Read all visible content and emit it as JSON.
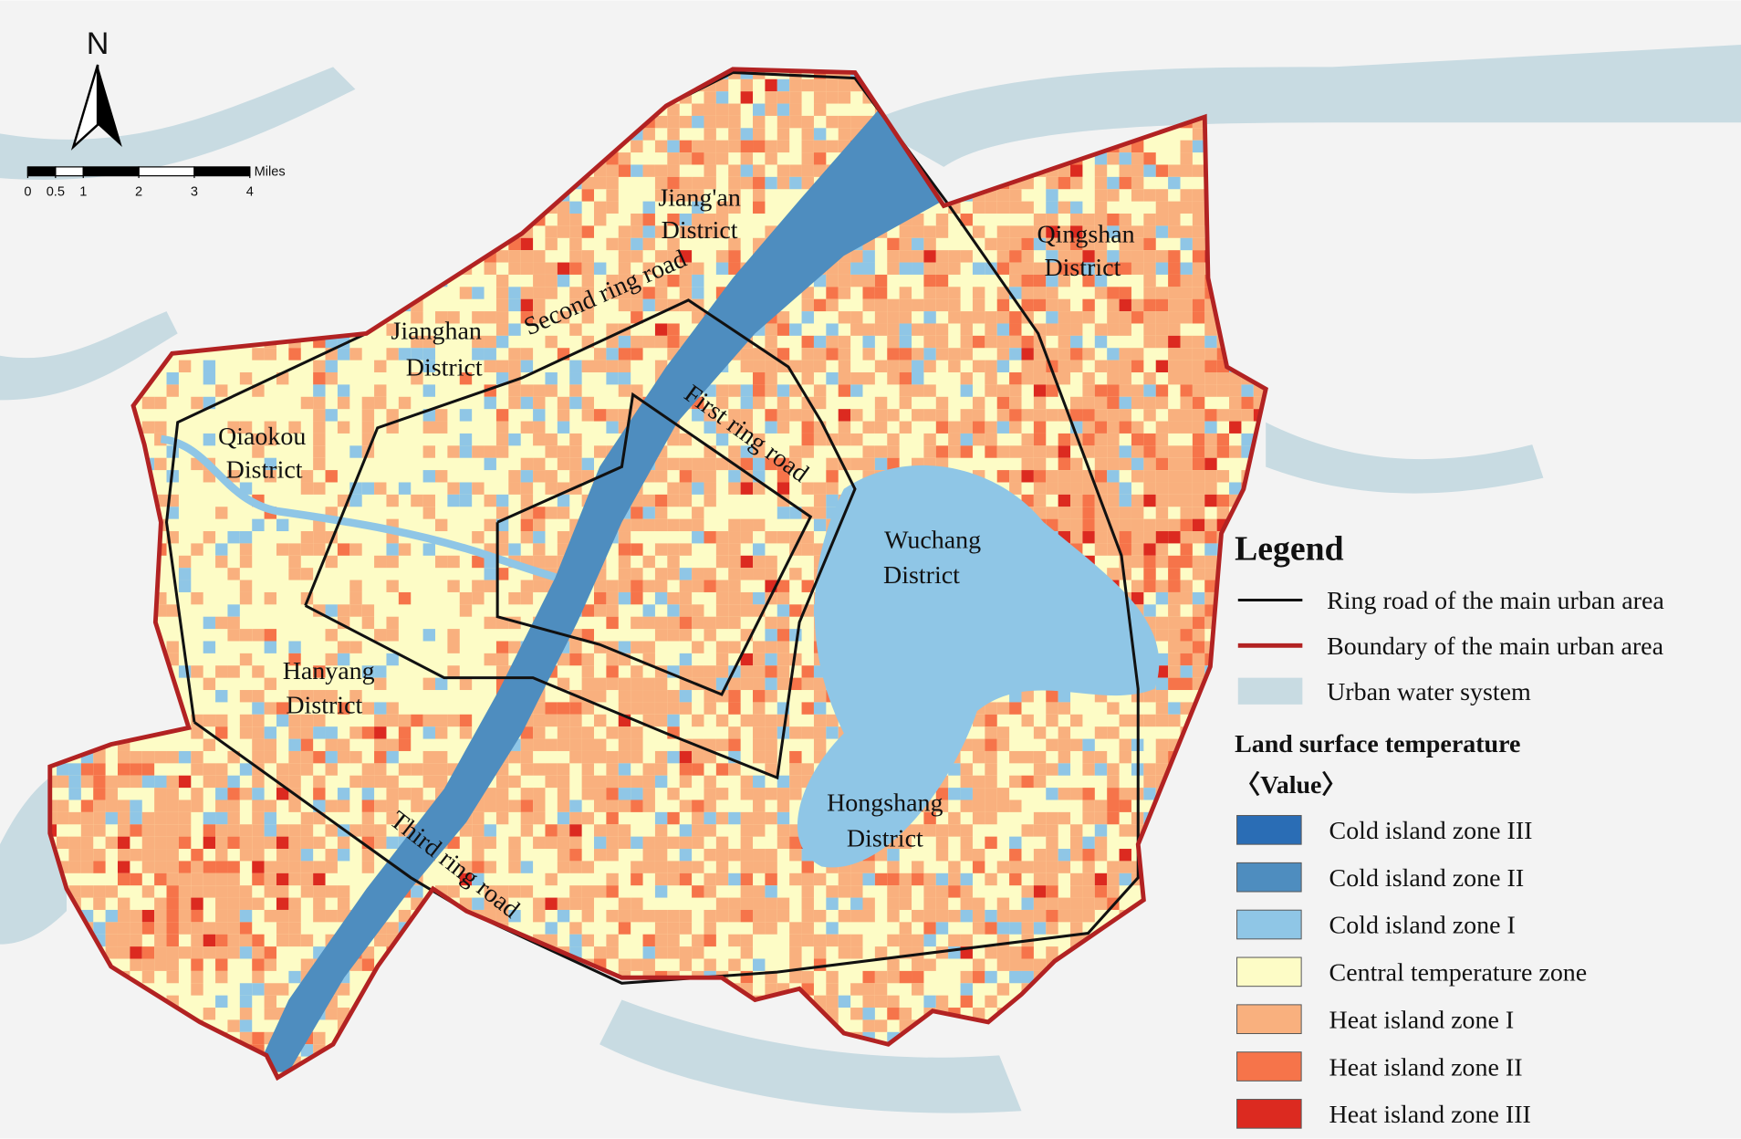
{
  "north": "N",
  "scale": {
    "ticks": [
      0,
      0.5,
      1,
      2,
      3,
      4
    ],
    "unit": "Miles"
  },
  "districts": [
    {
      "lines": [
        "Jiang'an",
        "District"
      ]
    },
    {
      "lines": [
        "Qingshan",
        "District"
      ]
    },
    {
      "lines": [
        "Jianghan",
        "District"
      ]
    },
    {
      "lines": [
        "Qiaokou",
        "District"
      ]
    },
    {
      "lines": [
        "Wuchang",
        "District"
      ]
    },
    {
      "lines": [
        "Hanyang",
        "District"
      ]
    },
    {
      "lines": [
        "Hongshang",
        "District"
      ]
    }
  ],
  "roads": [
    "Second ring road",
    "First ring road",
    "Third ring road"
  ],
  "legend": {
    "title": "Legend",
    "items": [
      {
        "label": "Ring road of the main urban area",
        "color": "#111111"
      },
      {
        "label": "Boundary of the main urban area",
        "color": "#b22222"
      },
      {
        "label": "Urban water system",
        "color": "#c8dbe2"
      }
    ],
    "lst_title": "Land surface temperature",
    "lst_subtitle": "〈Value〉",
    "zones": [
      {
        "label": "Cold island zone III",
        "color": "#2a6db5"
      },
      {
        "label": "Cold island zone II",
        "color": "#4e8dbf"
      },
      {
        "label": "Cold island zone I",
        "color": "#8fc6e6"
      },
      {
        "label": "Central temperature zone",
        "color": "#fdfcc6"
      },
      {
        "label": "Heat island zone I",
        "color": "#f9b07e"
      },
      {
        "label": "Heat island zone II",
        "color": "#f6744a"
      },
      {
        "label": "Heat island zone III",
        "color": "#dc2a20"
      }
    ]
  }
}
